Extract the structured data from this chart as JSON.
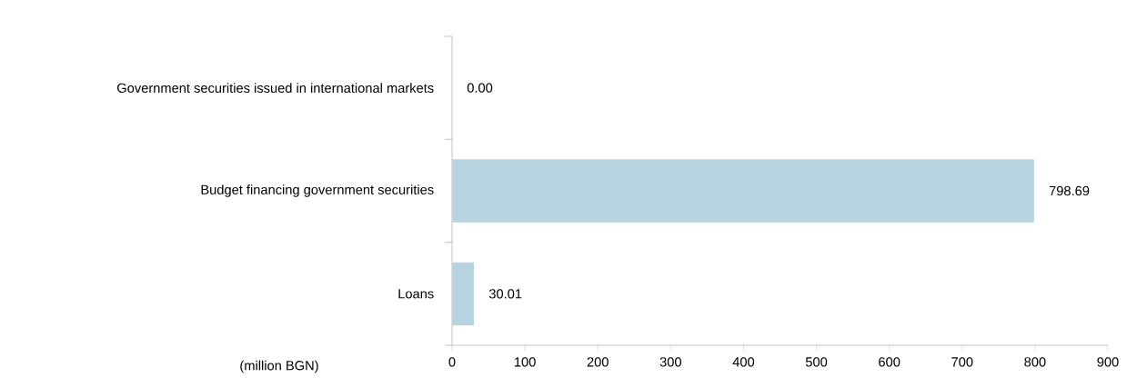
{
  "chart_data": {
    "type": "bar",
    "orientation": "horizontal",
    "categories": [
      "Government securities issued in international markets",
      "Budget financing government securities",
      "Loans"
    ],
    "values": [
      0.0,
      798.69,
      30.01
    ],
    "value_labels": [
      "0.00",
      "798.69",
      "30.01"
    ],
    "color": "#b7d4e0",
    "xlim": [
      0,
      900
    ],
    "xticks": [
      0,
      100,
      200,
      300,
      400,
      500,
      600,
      700,
      800,
      900
    ],
    "grid": false,
    "annotations": [
      "(million BGN)"
    ]
  }
}
